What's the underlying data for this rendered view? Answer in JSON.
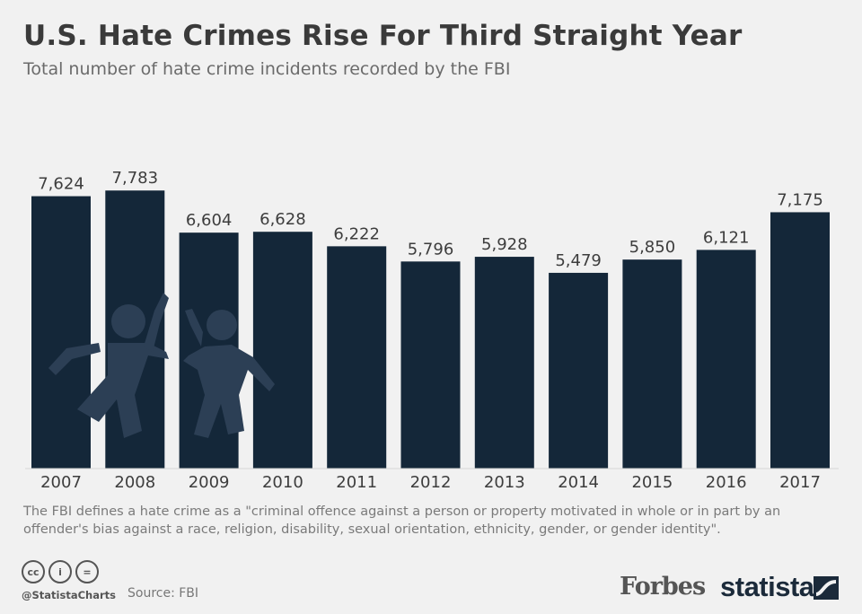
{
  "header": {
    "title": "U.S. Hate Crimes Rise For Third Straight Year",
    "subtitle": "Total number of hate crime incidents recorded by the FBI"
  },
  "chart_data": {
    "type": "bar",
    "title": "U.S. Hate Crimes Rise For Third Straight Year",
    "subtitle": "Total number of hate crime incidents recorded by the FBI",
    "categories": [
      "2007",
      "2008",
      "2009",
      "2010",
      "2011",
      "2012",
      "2013",
      "2014",
      "2015",
      "2016",
      "2017"
    ],
    "values": [
      7624,
      7783,
      6604,
      6628,
      6222,
      5796,
      5928,
      5479,
      5850,
      6121,
      7175
    ],
    "value_labels": [
      "7,624",
      "7,783",
      "6,604",
      "6,628",
      "6,222",
      "5,796",
      "5,928",
      "5,479",
      "5,850",
      "6,121",
      "7,175"
    ],
    "xlabel": "",
    "ylabel": "",
    "ylim": [
      0,
      8500
    ],
    "grid": false,
    "legend": "none",
    "bar_color": "#142739"
  },
  "footer": {
    "note": "The FBI defines a hate crime as a \"criminal offence against a person or property motivated in whole or in part by an offender's bias against a race, religion, disability, sexual orientation, ethnicity, gender, or gender identity\".",
    "cc_icons": [
      "cc",
      "i",
      "="
    ],
    "handle": "@StatistaCharts",
    "source": "Source: FBI",
    "brand_forbes": "Forbes",
    "brand_statista": "statista"
  },
  "colors": {
    "background": "#f1f1f1",
    "bar": "#142739",
    "title": "#3a3a3a",
    "subtitle": "#6b6b6b",
    "figure_overlay": "#2c3f55"
  }
}
